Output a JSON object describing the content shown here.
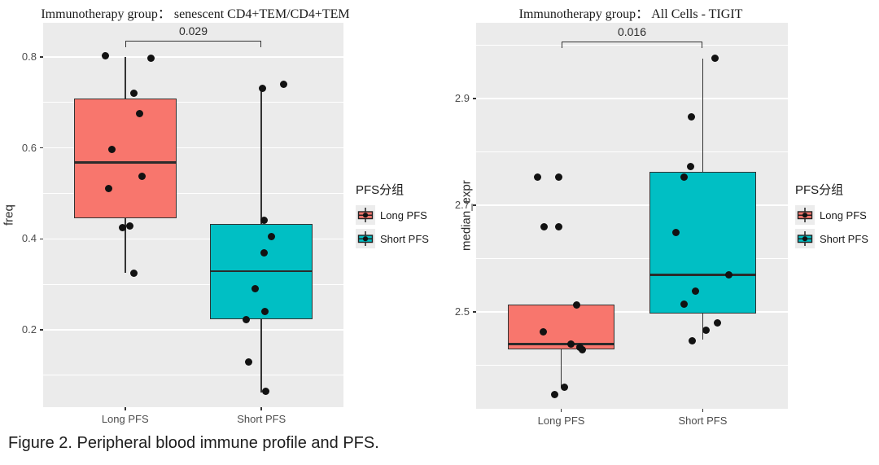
{
  "figure": {
    "caption": "Figure 2. Peripheral blood immune profile and PFS."
  },
  "legend": {
    "title": "PFS分组",
    "items": [
      {
        "label": "Long PFS",
        "color": "#F8766D"
      },
      {
        "label": "Short PFS",
        "color": "#00BFC4"
      }
    ]
  },
  "style": {
    "panel_bg": "#EBEBEB",
    "grid_color": "#FFFFFF",
    "box_stroke": "#333333",
    "point_color": "#121212",
    "long_pfs_color": "#F8766D",
    "short_pfs_color": "#00BFC4",
    "tick_label_color": "#4D4D4D"
  },
  "chart_data": [
    {
      "type": "boxplot",
      "title": "Immunotherapy group： senescent CD4+TEM/CD4+TEM",
      "xlabel": "",
      "ylabel": "freq",
      "categories": [
        "Long PFS",
        "Short PFS"
      ],
      "ylim": [
        0.03,
        0.875
      ],
      "yticks": [
        {
          "v": 0.2,
          "label": "0.2"
        },
        {
          "v": 0.4,
          "label": "0.4"
        },
        {
          "v": 0.6,
          "label": "0.6"
        },
        {
          "v": 0.8,
          "label": "0.8"
        }
      ],
      "yminor": [
        0.1,
        0.3,
        0.5,
        0.7
      ],
      "grid": true,
      "legend_position": "right",
      "significance": {
        "label": "0.029",
        "y": 0.836
      },
      "series": [
        {
          "name": "Long PFS",
          "color": "#F8766D",
          "box": {
            "low": 0.325,
            "q1": 0.445,
            "median": 0.568,
            "q3": 0.708,
            "high": 0.8
          },
          "points": [
            [
              -24,
              0.802
            ],
            [
              32,
              0.797
            ],
            [
              11,
              0.72
            ],
            [
              18,
              0.675
            ],
            [
              -16,
              0.597
            ],
            [
              21,
              0.537
            ],
            [
              -20,
              0.51
            ],
            [
              -3,
              0.425
            ],
            [
              6,
              0.428
            ],
            [
              11,
              0.325
            ]
          ]
        },
        {
          "name": "Short PFS",
          "color": "#00BFC4",
          "box": {
            "low": 0.063,
            "q1": 0.223,
            "median": 0.329,
            "q3": 0.433,
            "high": 0.73
          },
          "points": [
            [
              27,
              0.74
            ],
            [
              1,
              0.73
            ],
            [
              3,
              0.44
            ],
            [
              12,
              0.405
            ],
            [
              3,
              0.37
            ],
            [
              -8,
              0.29
            ],
            [
              4,
              0.24
            ],
            [
              -19,
              0.222
            ],
            [
              -16,
              0.13
            ],
            [
              5,
              0.065
            ]
          ]
        }
      ]
    },
    {
      "type": "boxplot",
      "title": "Immunotherapy group： All Cells - TIGIT",
      "xlabel": "",
      "ylabel": "median_expr",
      "categories": [
        "Long PFS",
        "Short PFS"
      ],
      "ylim": [
        2.318,
        3.042
      ],
      "yticks": [
        {
          "v": 2.5,
          "label": "2.5"
        },
        {
          "v": 2.7,
          "label": "2.7"
        },
        {
          "v": 2.9,
          "label": "2.9"
        }
      ],
      "yminor": [
        2.4,
        2.6,
        2.8,
        3.0
      ],
      "grid": true,
      "legend_position": "right",
      "significance": {
        "label": "0.016",
        "y": 3.007
      },
      "series": [
        {
          "name": "Long PFS",
          "color": "#F8766D",
          "box": {
            "low": 2.36,
            "q1": 2.43,
            "median": 2.439,
            "q3": 2.513,
            "high": 2.513
          },
          "points": [
            [
              -29,
              2.752
            ],
            [
              -3,
              2.752
            ],
            [
              -21,
              2.66
            ],
            [
              -3,
              2.66
            ],
            [
              19,
              2.513
            ],
            [
              -22,
              2.462
            ],
            [
              12,
              2.44
            ],
            [
              23,
              2.433
            ],
            [
              26,
              2.428
            ],
            [
              4,
              2.358
            ],
            [
              -8,
              2.345
            ]
          ]
        },
        {
          "name": "Short PFS",
          "color": "#00BFC4",
          "box": {
            "low": 2.448,
            "q1": 2.497,
            "median": 2.569,
            "q3": 2.763,
            "high": 2.975
          },
          "points": [
            [
              15,
              2.976
            ],
            [
              -14,
              2.866
            ],
            [
              -15,
              2.773
            ],
            [
              -23,
              2.753
            ],
            [
              -33,
              2.649
            ],
            [
              32,
              2.569
            ],
            [
              -9,
              2.538
            ],
            [
              -23,
              2.515
            ],
            [
              18,
              2.479
            ],
            [
              4,
              2.465
            ],
            [
              -13,
              2.445
            ]
          ]
        }
      ]
    }
  ]
}
